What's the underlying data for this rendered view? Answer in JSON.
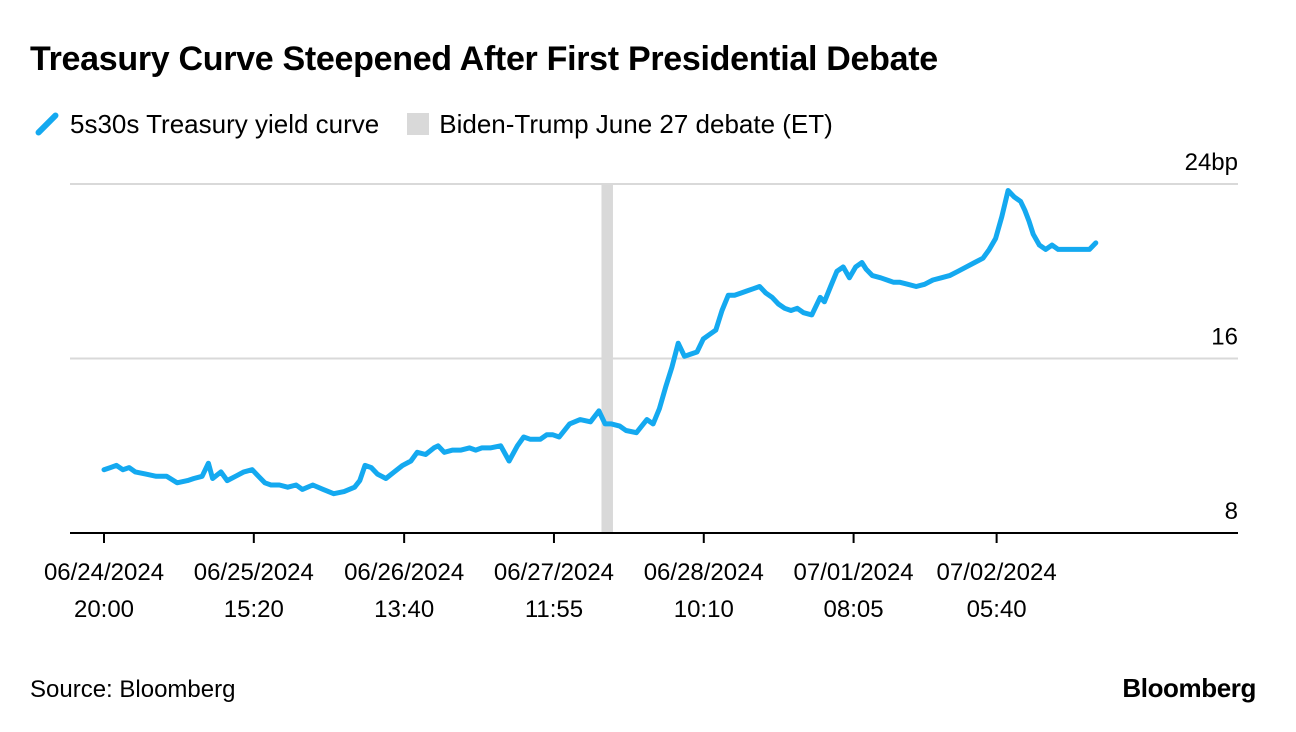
{
  "title": "Treasury Curve Steepened After First Presidential Debate",
  "legend": {
    "series_label": "5s30s Treasury yield curve",
    "event_label": "Biden-Trump June 27 debate (ET)"
  },
  "colors": {
    "line": "#14a9f0",
    "event": "#d9d9d9",
    "grid": "#d9d9d9",
    "axis": "#000000"
  },
  "icons": {
    "series": "line-swatch-icon",
    "event": "square-swatch-icon"
  },
  "source": "Source: Bloomberg",
  "brand": "Bloomberg",
  "chart_data": {
    "type": "line",
    "title": "Treasury Curve Steepened After First Presidential Debate",
    "xlabel": "",
    "ylabel": "bp",
    "ylim": [
      8,
      24
    ],
    "yticks": [
      8,
      16,
      24
    ],
    "ytick_labels": [
      "8",
      "16",
      "24bp"
    ],
    "gridlines": true,
    "xlim": [
      0,
      1.0
    ],
    "xticks": [
      {
        "x": 0.0,
        "date": "06/24/2024",
        "time": "20:00"
      },
      {
        "x": 0.1435,
        "date": "06/25/2024",
        "time": "15:20"
      },
      {
        "x": 0.2875,
        "date": "06/26/2024",
        "time": "13:40"
      },
      {
        "x": 0.431,
        "date": "06/27/2024",
        "time": "11:55"
      },
      {
        "x": 0.5745,
        "date": "06/28/2024",
        "time": "10:10"
      },
      {
        "x": 0.718,
        "date": "07/01/2024",
        "time": "08:05"
      },
      {
        "x": 0.855,
        "date": "07/02/2024",
        "time": "05:40"
      }
    ],
    "event_band": {
      "label": "Biden-Trump June 27 debate (ET)",
      "x_start": 0.4765,
      "x_end": 0.4875
    },
    "series": [
      {
        "name": "5s30s Treasury yield curve",
        "x": [
          0.0,
          0.006,
          0.012,
          0.018,
          0.024,
          0.03,
          0.04,
          0.05,
          0.06,
          0.07,
          0.08,
          0.086,
          0.094,
          0.1,
          0.104,
          0.112,
          0.118,
          0.126,
          0.134,
          0.142,
          0.148,
          0.154,
          0.16,
          0.168,
          0.176,
          0.184,
          0.19,
          0.2,
          0.21,
          0.22,
          0.23,
          0.24,
          0.245,
          0.25,
          0.256,
          0.262,
          0.27,
          0.278,
          0.286,
          0.294,
          0.3,
          0.308,
          0.316,
          0.32,
          0.326,
          0.334,
          0.342,
          0.35,
          0.356,
          0.362,
          0.37,
          0.38,
          0.388,
          0.396,
          0.402,
          0.408,
          0.414,
          0.418,
          0.424,
          0.43,
          0.436,
          0.446,
          0.456,
          0.466,
          0.474,
          0.48,
          0.486,
          0.494,
          0.5,
          0.51,
          0.52,
          0.526,
          0.532,
          0.538,
          0.544,
          0.55,
          0.556,
          0.562,
          0.568,
          0.574,
          0.58,
          0.586,
          0.592,
          0.598,
          0.604,
          0.61,
          0.616,
          0.622,
          0.628,
          0.634,
          0.64,
          0.646,
          0.652,
          0.658,
          0.664,
          0.67,
          0.678,
          0.686,
          0.69,
          0.696,
          0.702,
          0.708,
          0.714,
          0.72,
          0.726,
          0.73,
          0.736,
          0.744,
          0.75,
          0.756,
          0.762,
          0.77,
          0.778,
          0.786,
          0.794,
          0.802,
          0.81,
          0.818,
          0.826,
          0.834,
          0.842,
          0.848,
          0.854,
          0.86,
          0.866,
          0.872,
          0.878,
          0.882,
          0.886,
          0.89,
          0.896,
          0.902,
          0.908,
          0.914,
          0.92,
          0.926,
          0.932,
          0.938,
          0.944,
          0.95
        ],
        "values": [
          10.9,
          11.0,
          11.1,
          10.9,
          11.0,
          10.8,
          10.7,
          10.6,
          10.6,
          10.3,
          10.4,
          10.5,
          10.6,
          11.2,
          10.5,
          10.8,
          10.4,
          10.6,
          10.8,
          10.9,
          10.6,
          10.3,
          10.2,
          10.2,
          10.1,
          10.2,
          10.0,
          10.2,
          10.0,
          9.8,
          9.9,
          10.1,
          10.4,
          11.1,
          11.0,
          10.7,
          10.5,
          10.8,
          11.1,
          11.3,
          11.7,
          11.6,
          11.9,
          12.0,
          11.7,
          11.8,
          11.8,
          11.9,
          11.8,
          11.9,
          11.9,
          12.0,
          11.3,
          12.0,
          12.4,
          12.3,
          12.3,
          12.3,
          12.5,
          12.5,
          12.4,
          13.0,
          13.2,
          13.1,
          13.6,
          13.0,
          13.0,
          12.9,
          12.7,
          12.6,
          13.2,
          13.0,
          13.7,
          14.7,
          15.6,
          16.7,
          16.1,
          16.2,
          16.3,
          16.9,
          17.1,
          17.3,
          18.2,
          18.9,
          18.9,
          19.0,
          19.1,
          19.2,
          19.3,
          19.0,
          18.8,
          18.5,
          18.3,
          18.2,
          18.3,
          18.1,
          18.0,
          18.8,
          18.6,
          19.3,
          20.0,
          20.2,
          19.7,
          20.2,
          20.4,
          20.1,
          19.8,
          19.7,
          19.6,
          19.5,
          19.5,
          19.4,
          19.3,
          19.4,
          19.6,
          19.7,
          19.8,
          20.0,
          20.2,
          20.4,
          20.6,
          21.0,
          21.5,
          22.5,
          23.7,
          23.4,
          23.2,
          22.8,
          22.3,
          21.7,
          21.2,
          21.0,
          21.2,
          21.0,
          21.0,
          21.0,
          21.0,
          21.0,
          21.0,
          21.3
        ],
        "color": "#14a9f0"
      }
    ]
  }
}
